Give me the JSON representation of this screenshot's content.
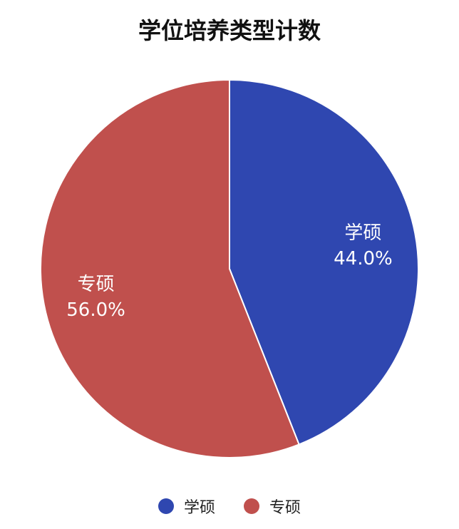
{
  "chart_data": {
    "type": "pie",
    "title": "学位培养类型计数",
    "categories": [
      "学硕",
      "专硕"
    ],
    "values": [
      44.0,
      56.0
    ],
    "labels": [
      "44.0%",
      "56.0%"
    ],
    "colors": [
      "#2f47b0",
      "#c0504d"
    ],
    "legend": "bottom"
  }
}
